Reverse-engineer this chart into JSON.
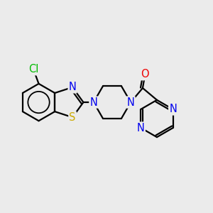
{
  "bg_color": "#ebebeb",
  "bond_color": "#000000",
  "bond_width": 1.6,
  "atom_colors": {
    "Cl": "#00bb00",
    "N": "#0000ee",
    "S": "#ccaa00",
    "O": "#ee0000",
    "C": "#000000"
  },
  "font_size": 10.5
}
